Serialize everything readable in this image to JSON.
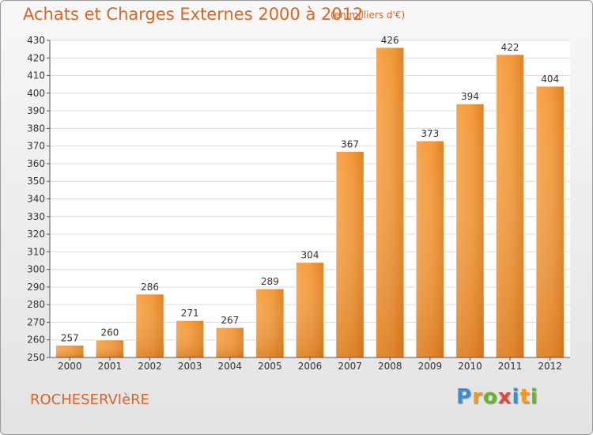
{
  "header": {
    "title": "Achats et Charges Externes 2000 à 2012",
    "subtitle": "(en milliers d'€)"
  },
  "footer": {
    "commune": "ROCHESERVIèRE",
    "logo_letters": [
      "P",
      "r",
      "o",
      "x",
      "i",
      "t",
      "i"
    ],
    "logo_colors": [
      "#3a8fd1",
      "#f39a1e",
      "#6ab42d",
      "#e8463a",
      "#3a8fd1",
      "#f39a1e",
      "#6ab42d"
    ]
  },
  "chart_data": {
    "type": "bar",
    "categories": [
      "2000",
      "2001",
      "2002",
      "2003",
      "2004",
      "2005",
      "2006",
      "2007",
      "2008",
      "2009",
      "2010",
      "2011",
      "2012"
    ],
    "values": [
      257,
      260,
      286,
      271,
      267,
      289,
      304,
      367,
      426,
      373,
      394,
      422,
      404
    ],
    "ylim": [
      250,
      430
    ],
    "yticks": [
      250,
      260,
      270,
      280,
      290,
      300,
      310,
      320,
      330,
      340,
      350,
      360,
      370,
      380,
      390,
      400,
      410,
      420,
      430
    ],
    "grid": true,
    "bar_color": "#f0922f",
    "title": "Achats et Charges Externes 2000 à 2012",
    "xlabel": "",
    "ylabel": ""
  }
}
